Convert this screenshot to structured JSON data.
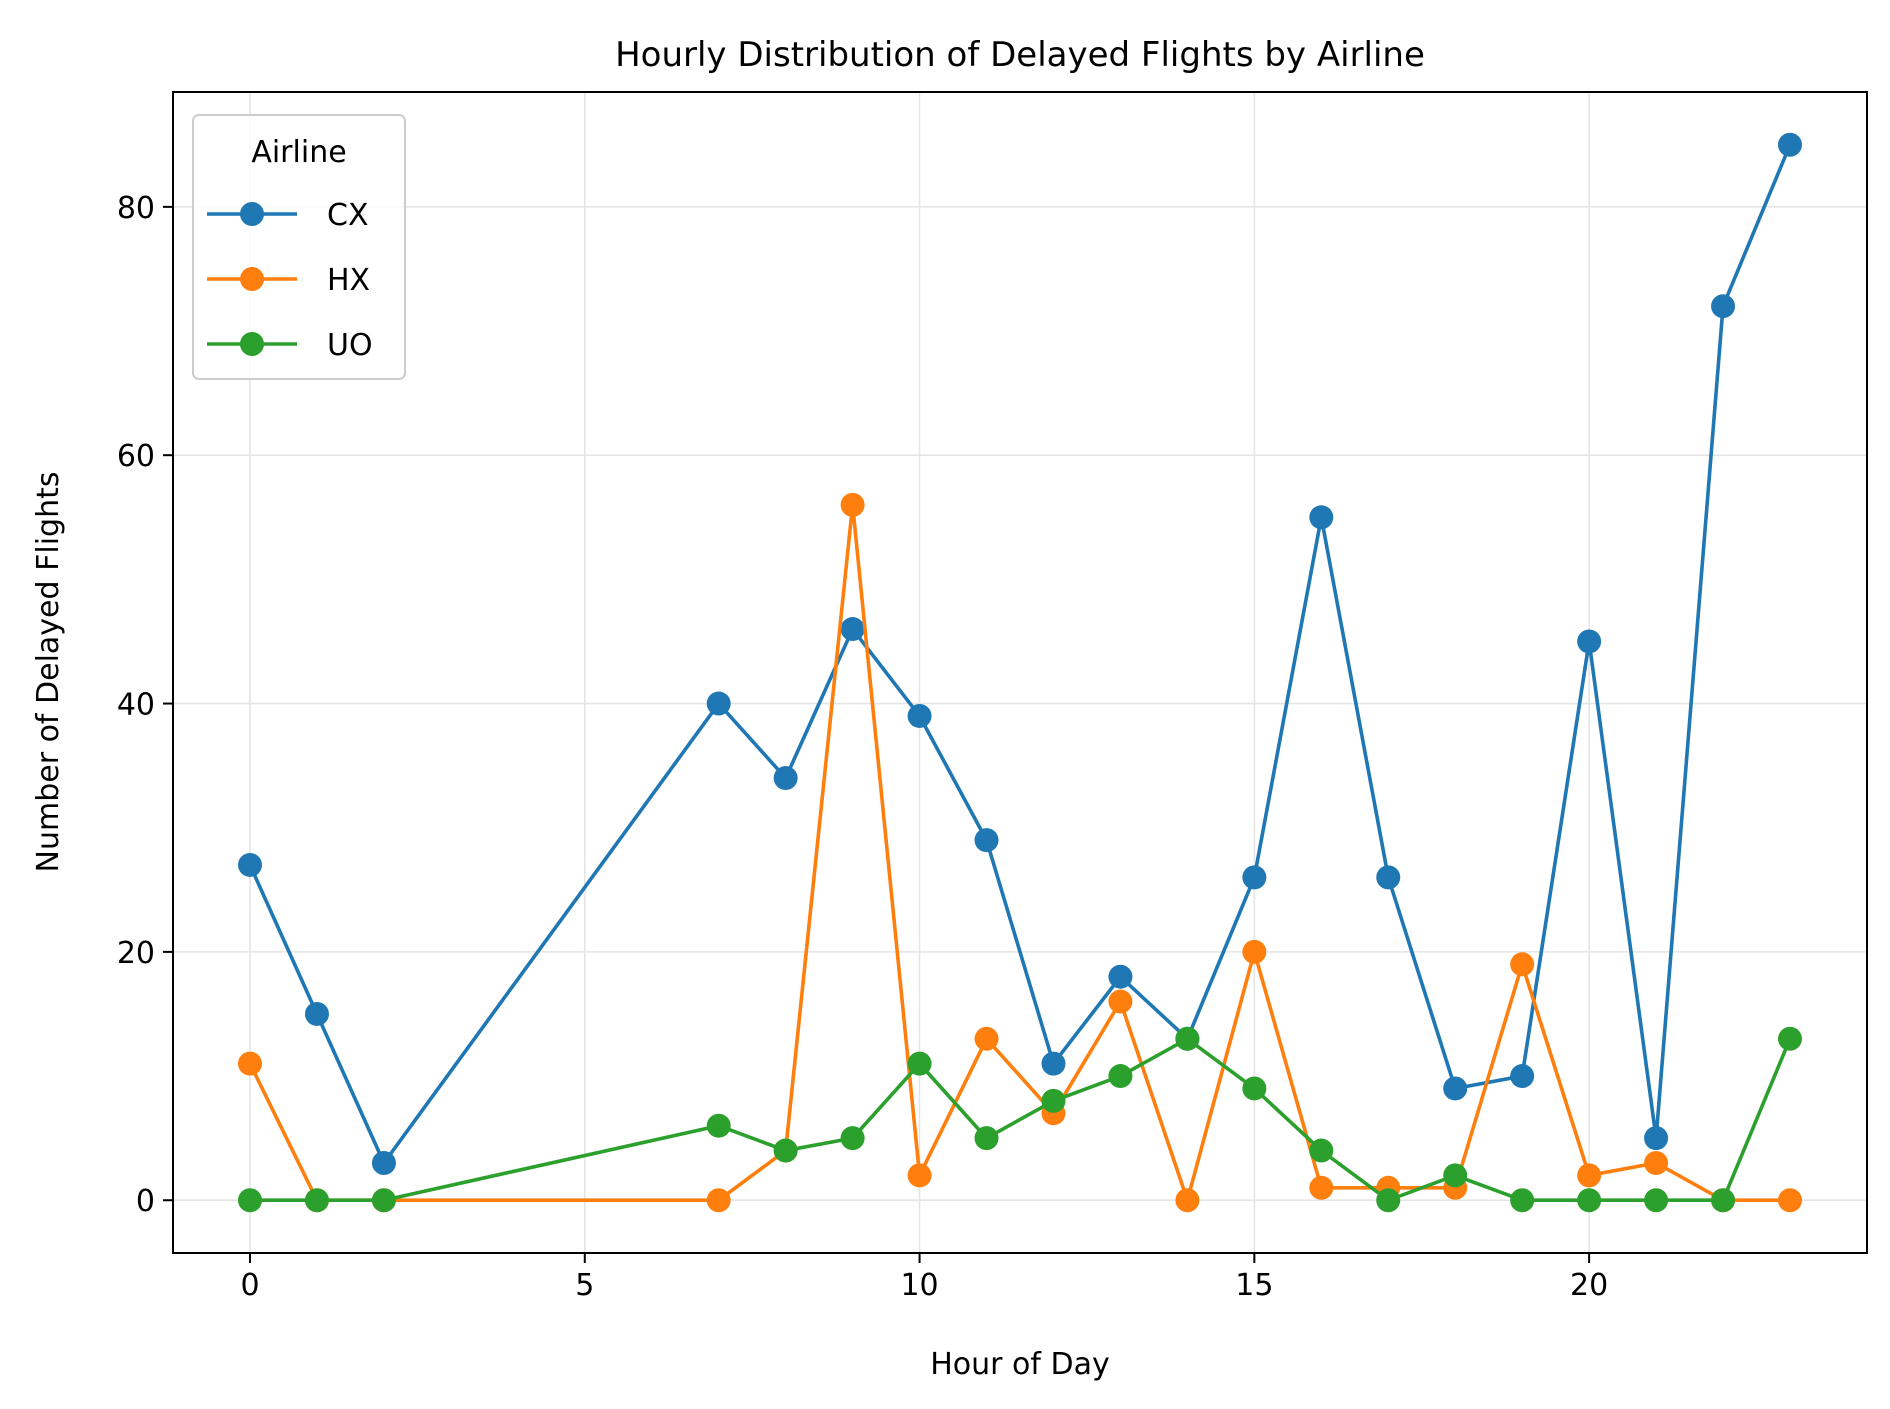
{
  "chart_data": {
    "type": "line",
    "title": "Hourly Distribution of Delayed Flights by Airline",
    "xlabel": "Hour of Day",
    "ylabel": "Number of Delayed Flights",
    "xlim": [
      -1.15,
      24.15
    ],
    "ylim": [
      -4.25,
      89.25
    ],
    "xticks": [
      0,
      5,
      10,
      15,
      20
    ],
    "yticks": [
      0,
      20,
      40,
      60,
      80
    ],
    "grid": true,
    "legend": {
      "title": "Airline",
      "position": "top-left"
    },
    "series": [
      {
        "name": "CX",
        "color": "#1f77b4",
        "x": [
          0,
          1,
          2,
          7,
          8,
          9,
          10,
          11,
          12,
          13,
          14,
          15,
          16,
          17,
          18,
          19,
          20,
          21,
          22,
          23
        ],
        "y": [
          27,
          15,
          3,
          40,
          34,
          46,
          39,
          29,
          11,
          18,
          13,
          26,
          55,
          26,
          9,
          10,
          45,
          5,
          72,
          85
        ]
      },
      {
        "name": "HX",
        "color": "#ff7f0e",
        "x": [
          0,
          1,
          2,
          7,
          8,
          9,
          10,
          11,
          12,
          13,
          14,
          15,
          16,
          17,
          18,
          19,
          20,
          21,
          22,
          23
        ],
        "y": [
          11,
          0,
          0,
          0,
          4,
          56,
          2,
          13,
          7,
          16,
          0,
          20,
          1,
          1,
          1,
          19,
          2,
          3,
          0,
          0
        ]
      },
      {
        "name": "UO",
        "color": "#2ca02c",
        "x": [
          0,
          1,
          2,
          7,
          8,
          9,
          10,
          11,
          12,
          13,
          14,
          15,
          16,
          17,
          18,
          19,
          20,
          21,
          22,
          23
        ],
        "y": [
          0,
          0,
          0,
          6,
          4,
          5,
          11,
          5,
          8,
          10,
          13,
          9,
          4,
          0,
          2,
          0,
          0,
          0,
          0,
          13
        ]
      }
    ]
  }
}
